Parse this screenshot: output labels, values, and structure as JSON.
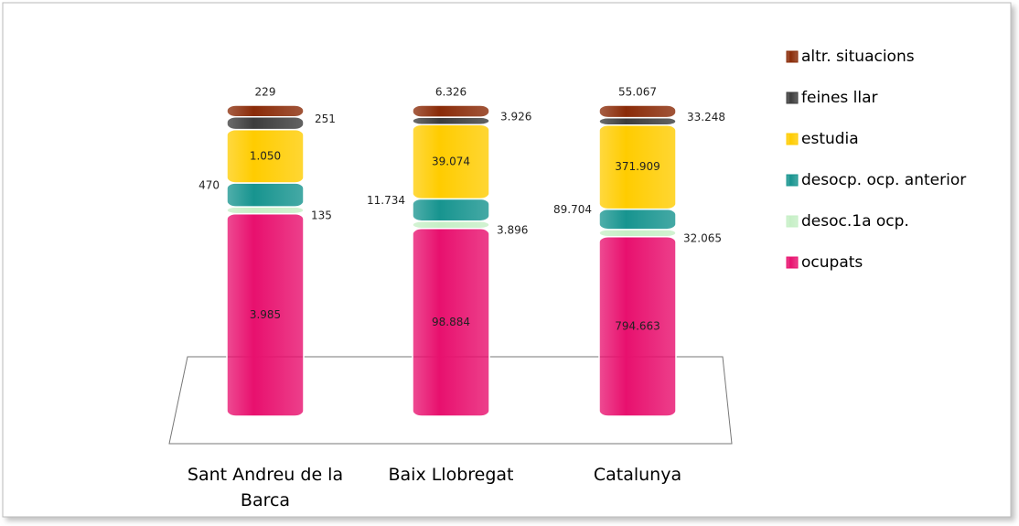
{
  "chart_data": {
    "type": "stacked_bar_percent",
    "categories": [
      "Sant Andreu de la Barca",
      "Baix Llobregat",
      "Catalunya"
    ],
    "series": [
      {
        "name": "ocupats",
        "color": "#e8106e",
        "values": [
          3985,
          98884,
          794663
        ],
        "value_labels": [
          "3.985",
          "98.884",
          "794.663"
        ]
      },
      {
        "name": "desoc.1a ocp.",
        "color": "#c6efc6",
        "values": [
          135,
          3896,
          32065
        ],
        "value_labels": [
          "135",
          "3.896",
          "32.065"
        ]
      },
      {
        "name": "desocp. ocp. anterior",
        "color": "#17948f",
        "values": [
          470,
          11734,
          89704
        ],
        "value_labels": [
          "470",
          "11.734",
          "89.704"
        ]
      },
      {
        "name": "estudia",
        "color": "#ffcc00",
        "values": [
          1050,
          39074,
          371909
        ],
        "value_labels": [
          "1.050",
          "39.074",
          "371.909"
        ]
      },
      {
        "name": "feines llar",
        "color": "#3c3c3c",
        "values": [
          251,
          3926,
          33248
        ],
        "value_labels": [
          "251",
          "3.926",
          "33.248"
        ]
      },
      {
        "name": "altr. situacions",
        "color": "#8a2b08",
        "values": [
          229,
          6326,
          55067
        ],
        "value_labels": [
          "229",
          "6.326",
          "55.067"
        ]
      }
    ]
  }
}
